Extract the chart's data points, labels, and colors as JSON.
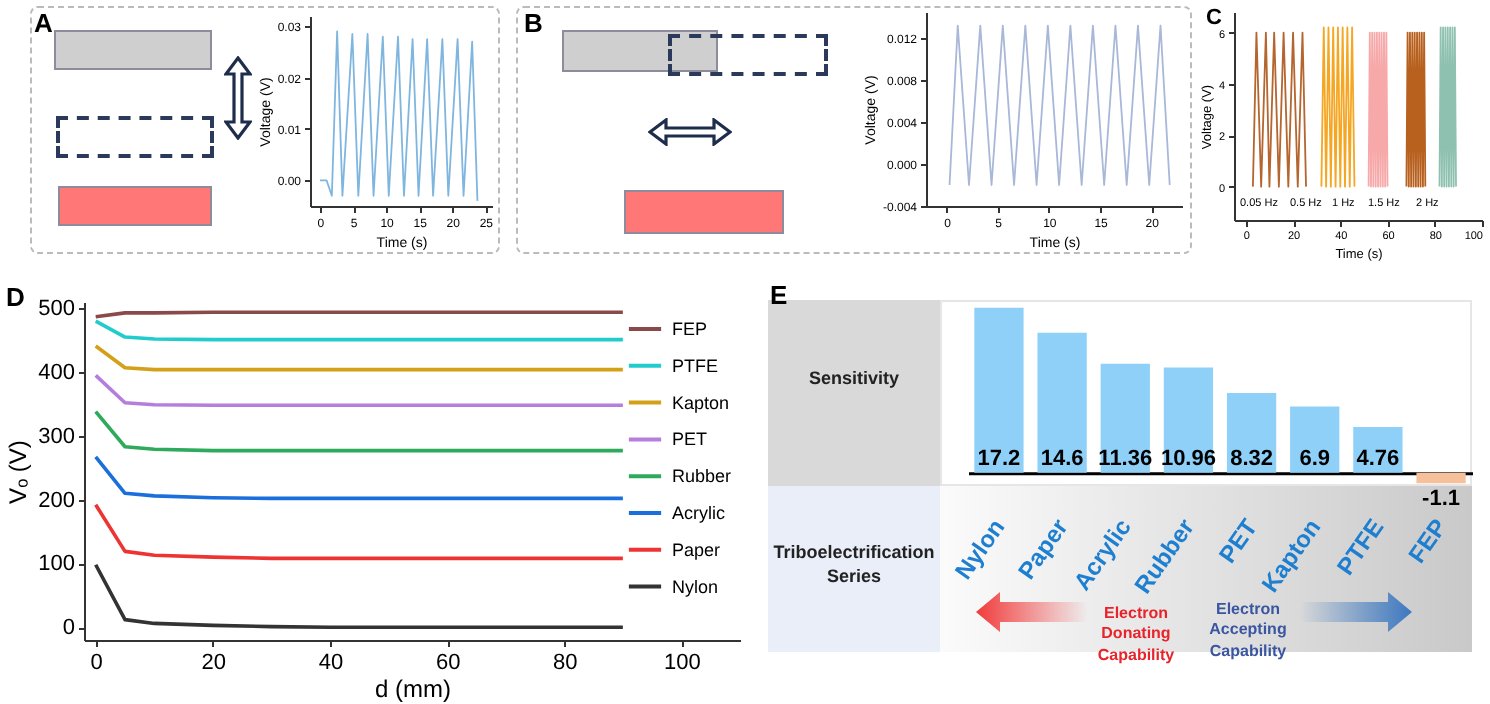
{
  "chart_data": [
    {
      "type": "line",
      "xlabel": "Time (s)",
      "ylabel": "Voltage (V)",
      "annotations": [
        "A"
      ],
      "xlim": [
        -1.5,
        26
      ],
      "ylim": [
        -0.005,
        0.032
      ],
      "xticks": [
        0,
        5,
        10,
        15,
        20,
        25
      ],
      "yticks": [
        {
          "value": 0,
          "label": "0.00"
        },
        {
          "value": 0.01,
          "label": "0.01"
        },
        {
          "value": 0.02,
          "label": "0.02"
        },
        {
          "value": 0.03,
          "label": "0.03"
        }
      ],
      "grid": false,
      "series": [
        {
          "color": "#7fb6e0",
          "x": [
            0,
            1,
            1.8,
            2.6,
            3.4,
            4.9,
            5.8,
            7.2,
            8.1,
            9.5,
            10.4,
            11.8,
            12.7,
            14,
            14.9,
            16.2,
            17.1,
            18.5,
            19.4,
            20.8,
            21.7,
            23,
            23.8
          ],
          "values": [
            0,
            0,
            -0.003,
            0.029,
            -0.003,
            0.0285,
            -0.003,
            0.0285,
            -0.003,
            0.028,
            -0.003,
            0.028,
            -0.003,
            0.0275,
            -0.003,
            0.0275,
            -0.003,
            0.0275,
            -0.003,
            0.0275,
            -0.003,
            0.027,
            -0.004
          ]
        }
      ]
    },
    {
      "type": "line",
      "xlabel": "Time (s)",
      "ylabel": "Voltage (V)",
      "annotations": [
        "B"
      ],
      "xlim": [
        -2,
        23
      ],
      "ylim": [
        -0.004,
        0.0145
      ],
      "xticks": [
        0,
        5,
        10,
        15,
        20
      ],
      "yticks": [
        {
          "value": -0.004,
          "label": "-0.004"
        },
        {
          "value": 0,
          "label": "0.000"
        },
        {
          "value": 0.004,
          "label": "0.004"
        },
        {
          "value": 0.008,
          "label": "0.008"
        },
        {
          "value": 0.012,
          "label": "0.012"
        }
      ],
      "grid": false,
      "series": [
        {
          "color": "#a9b8d8",
          "x": [
            0.3,
            1.1,
            2.2,
            3.3,
            4.4,
            5.5,
            6.6,
            7.7,
            8.8,
            9.9,
            11,
            12.1,
            13.2,
            14.3,
            15.4,
            16.5,
            17.6,
            18.7,
            19.8,
            20.9,
            21.8
          ],
          "values": [
            -0.002,
            0.0132,
            -0.002,
            0.0132,
            -0.002,
            0.0132,
            -0.002,
            0.0132,
            -0.002,
            0.0132,
            -0.002,
            0.0132,
            -0.002,
            0.0132,
            -0.002,
            0.0132,
            -0.002,
            0.0132,
            -0.002,
            0.0132,
            -0.002
          ]
        }
      ]
    },
    {
      "type": "line",
      "xlabel": "Time (s)",
      "ylabel": "Voltage (V)",
      "annotations": [
        "C",
        "0.05 Hz",
        "0.5 Hz",
        "1 Hz",
        "1.5 Hz",
        "2 Hz"
      ],
      "xlim": [
        -5,
        100
      ],
      "ylim": [
        -1.3,
        6.8
      ],
      "xticks": [
        0,
        20,
        40,
        60,
        80,
        100
      ],
      "yticks": [
        0,
        2,
        4,
        6
      ],
      "grid": false,
      "series": [
        {
          "color": "#b5652e",
          "x": [
            3,
            4.5,
            6.5,
            8.5,
            10,
            12,
            14,
            16,
            18,
            20,
            22,
            24,
            25.5
          ],
          "values": [
            0,
            6,
            0,
            6,
            0,
            6,
            0,
            6,
            0,
            6,
            0,
            6,
            0
          ]
        },
        {
          "color": "#f5a623",
          "x": [
            32,
            33,
            34,
            35,
            36,
            37,
            38,
            39,
            40,
            41,
            42,
            43,
            44,
            45,
            46
          ],
          "values": [
            0,
            6.2,
            0,
            6.2,
            0,
            6.2,
            0,
            6.2,
            0,
            6.2,
            0,
            6.2,
            0,
            6.2,
            0
          ]
        },
        {
          "color": "#f7a8a8",
          "x": [
            52,
            52.5,
            53,
            53.5,
            54,
            54.5,
            55,
            55.5,
            56,
            56.5,
            57,
            57.5,
            58,
            58.5,
            59,
            59.5,
            60
          ],
          "values": [
            0,
            6,
            0,
            6,
            0,
            6,
            0,
            6,
            0,
            6,
            0,
            6,
            0,
            6,
            0,
            6,
            0
          ]
        },
        {
          "color": "#b8601e",
          "x": [
            68,
            68.5,
            69,
            69.5,
            70,
            70.5,
            71,
            71.5,
            72,
            72.5,
            73,
            73.5,
            74,
            74.5,
            75,
            75.5,
            76
          ],
          "values": [
            0,
            6,
            0,
            6,
            0,
            6,
            0,
            6,
            0,
            6,
            0,
            6,
            0,
            6,
            0,
            6,
            0
          ]
        },
        {
          "color": "#8fc1b0",
          "x": [
            82,
            82.5,
            83,
            83.5,
            84,
            84.5,
            85,
            85.5,
            86,
            86.5,
            87,
            87.5,
            88,
            88.5,
            89
          ],
          "values": [
            0,
            6.2,
            0,
            6.2,
            0,
            6.2,
            0,
            6.2,
            0,
            6.2,
            0,
            6.2,
            0,
            6.2,
            0
          ]
        }
      ]
    },
    {
      "type": "line",
      "xlabel": "d (mm)",
      "ylabel": "Vₒ (V)",
      "annotations": [
        "D"
      ],
      "x": [
        0,
        5,
        10,
        20,
        30,
        40,
        50,
        60,
        70,
        80,
        90
      ],
      "xlim": [
        -2,
        110
      ],
      "ylim": [
        -20,
        510
      ],
      "xticks": [
        0,
        20,
        40,
        60,
        80,
        100
      ],
      "yticks": [
        0,
        100,
        200,
        300,
        400,
        500
      ],
      "grid": false,
      "legend": "top right",
      "series": [
        {
          "name": "FEP",
          "color": "#8b4a4a",
          "values": [
            487,
            493,
            493,
            494,
            494,
            494,
            494,
            494,
            494,
            494,
            494
          ]
        },
        {
          "name": "PTFE",
          "color": "#22cccc",
          "values": [
            480,
            455,
            452,
            451,
            451,
            451,
            451,
            451,
            451,
            451,
            451
          ]
        },
        {
          "name": "Kapton",
          "color": "#d4a017",
          "values": [
            441,
            407,
            404,
            404,
            404,
            404,
            404,
            404,
            404,
            404,
            404
          ]
        },
        {
          "name": "PET",
          "color": "#b57edc",
          "values": [
            395,
            352,
            349,
            348,
            348,
            348,
            348,
            348,
            348,
            348,
            348
          ]
        },
        {
          "name": "Rubber",
          "color": "#2eaa5c",
          "values": [
            338,
            283,
            279,
            277,
            277,
            277,
            277,
            277,
            277,
            277,
            277
          ]
        },
        {
          "name": "Acrylic",
          "color": "#1a6fdc",
          "values": [
            267,
            210,
            206,
            203,
            202,
            202,
            202,
            202,
            202,
            202,
            202
          ]
        },
        {
          "name": "Paper",
          "color": "#ee3333",
          "values": [
            192,
            119,
            113,
            110,
            108,
            108,
            108,
            108,
            108,
            108,
            108
          ]
        },
        {
          "name": "Nylon",
          "color": "#333333",
          "values": [
            98,
            12,
            6,
            3,
            1,
            0,
            0,
            0,
            0,
            0,
            0
          ]
        }
      ]
    },
    {
      "type": "bar",
      "annotations": [
        "E",
        "Sensitivity",
        "Triboelectrification Series",
        "Electron Donating Capability",
        "Electron Accepting Capability"
      ],
      "categories": [
        "Nylon",
        "Paper",
        "Acrylic",
        "Rubber",
        "PET",
        "Kapton",
        "PTFE",
        "FEP"
      ],
      "values": [
        17.2,
        14.6,
        11.36,
        10.96,
        8.32,
        6.9,
        4.76,
        -1.1
      ],
      "colors": [
        "#8fd0f8",
        "#8fd0f8",
        "#8fd0f8",
        "#8fd0f8",
        "#8fd0f8",
        "#8fd0f8",
        "#8fd0f8",
        "#f5c09a"
      ],
      "ylim": [
        -2,
        18
      ],
      "data_labels": true,
      "tick_labels": "x"
    }
  ]
}
